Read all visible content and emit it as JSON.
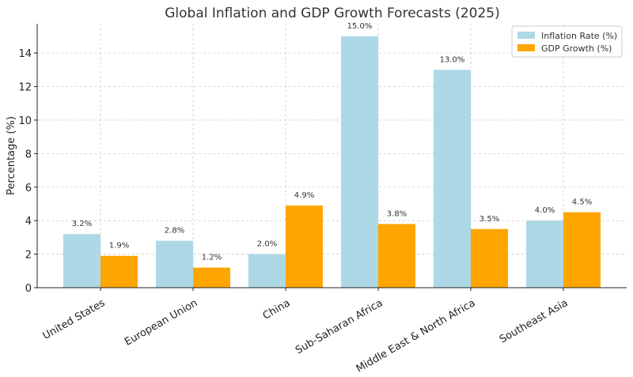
{
  "chart_data": {
    "type": "bar",
    "title": "Global Inflation and GDP Growth Forecasts (2025)",
    "xlabel": "",
    "ylabel": "Percentage (%)",
    "categories": [
      "United States",
      "European Union",
      "China",
      "Sub-Saharan Africa",
      "Middle East & North Africa",
      "Southeast Asia"
    ],
    "series": [
      {
        "name": "Inflation Rate (%)",
        "color": "#add8e6",
        "values": [
          3.2,
          2.8,
          2.0,
          15.0,
          13.0,
          4.0
        ],
        "labels": [
          "3.2%",
          "2.8%",
          "2.0%",
          "15.0%",
          "13.0%",
          "4.0%"
        ]
      },
      {
        "name": "GDP Growth (%)",
        "color": "#ffa500",
        "values": [
          1.9,
          1.2,
          4.9,
          3.8,
          3.5,
          4.5
        ],
        "labels": [
          "1.9%",
          "1.2%",
          "4.9%",
          "3.8%",
          "3.5%",
          "4.5%"
        ]
      }
    ],
    "ylim": [
      0,
      15.75
    ],
    "yticks": [
      0,
      2,
      4,
      6,
      8,
      10,
      12,
      14
    ],
    "grid": true,
    "legend_position": "top-right"
  }
}
